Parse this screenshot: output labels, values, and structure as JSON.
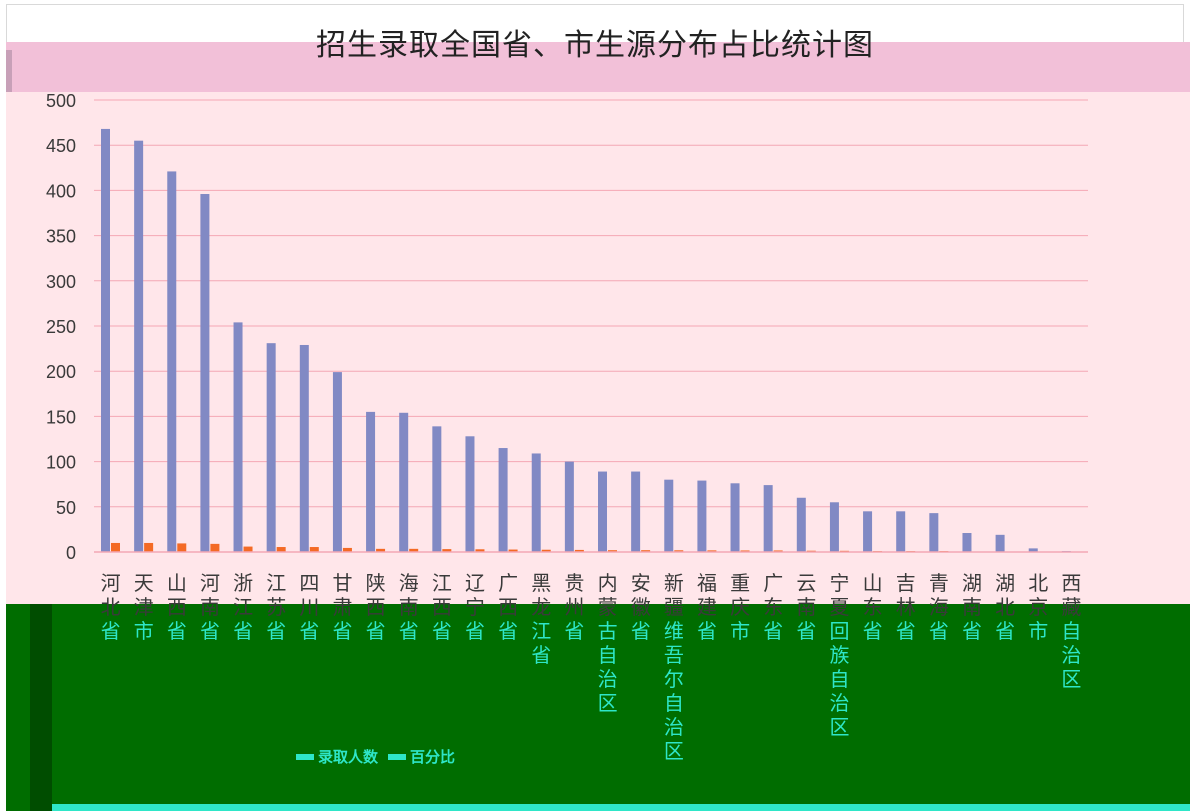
{
  "chart_data": {
    "type": "bar",
    "title": "招生录取全国省、市生源分布占比统计图",
    "ylim": [
      0,
      500
    ],
    "yticks": [
      0,
      50,
      100,
      150,
      200,
      250,
      300,
      350,
      400,
      450,
      500
    ],
    "grid": true,
    "legend": "bottom",
    "categories": [
      "河北省",
      "天津市",
      "山西省",
      "河南省",
      "浙江省",
      "江苏省",
      "四川省",
      "甘肃省",
      "陕西省",
      "海南省",
      "江西省",
      "辽宁省",
      "广西省",
      "黑龙江省",
      "贵州省",
      "内蒙古自治区",
      "安徽省",
      "新疆维吾尔自治区",
      "福建省",
      "重庆市",
      "广东省",
      "云南省",
      "宁夏回族自治区",
      "山东省",
      "吉林省",
      "青海省",
      "湖南省",
      "湖北省",
      "北京市",
      "西藏自治区"
    ],
    "series": [
      {
        "name": "录取人数",
        "color": "#8189c4",
        "values": [
          468,
          455,
          421,
          396,
          254,
          231,
          229,
          199,
          155,
          154,
          139,
          128,
          115,
          109,
          100,
          89,
          89,
          80,
          79,
          76,
          74,
          60,
          55,
          45,
          45,
          43,
          21,
          19,
          4,
          1
        ]
      },
      {
        "name": "百分比",
        "color": "#f46a25",
        "values": [
          10,
          10,
          9.5,
          9,
          6,
          5.5,
          5.5,
          4.5,
          3.5,
          3.5,
          3.2,
          3,
          2.7,
          2.5,
          2.3,
          2,
          2,
          1.9,
          1.8,
          1.7,
          1.7,
          1.4,
          1.3,
          1,
          1,
          1,
          0.5,
          0.4,
          0.1,
          0.02
        ]
      }
    ]
  }
}
